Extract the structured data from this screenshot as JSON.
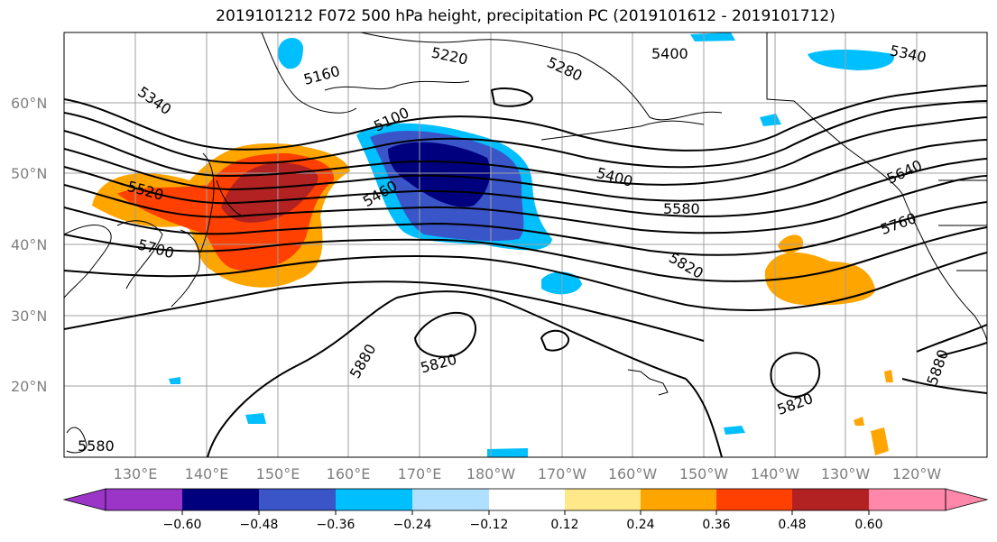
{
  "title": "2019101212 F072 500 hPa height, precipitation PC (2019101612 - 2019101712)",
  "map": {
    "lat_labels": [
      "60°N",
      "50°N",
      "40°N",
      "30°N",
      "20°N"
    ],
    "lon_labels": [
      "130°E",
      "140°E",
      "150°E",
      "160°E",
      "170°E",
      "180°W",
      "170°W",
      "160°W",
      "150°W",
      "140°W",
      "130°W",
      "120°W"
    ],
    "contour_labels": [
      "5160",
      "5220",
      "5280",
      "5400",
      "5340",
      "5340",
      "5100",
      "5520",
      "5460",
      "5400",
      "5580",
      "5640",
      "5760",
      "5700",
      "5820",
      "5880",
      "5820",
      "5820",
      "5880",
      "5580"
    ]
  },
  "colorbar": {
    "tick_labels": [
      "−0.60",
      "−0.48",
      "−0.36",
      "−0.24",
      "−0.12",
      "0.12",
      "0.24",
      "0.36",
      "0.48",
      "0.60"
    ],
    "colors": [
      "#9b35c8",
      "#00007f",
      "#3a55c8",
      "#00bfff",
      "#b0e0ff",
      "#ffffff",
      "#ffe88a",
      "#ffa500",
      "#ff4000",
      "#b22222",
      "#ff88aa"
    ]
  }
}
